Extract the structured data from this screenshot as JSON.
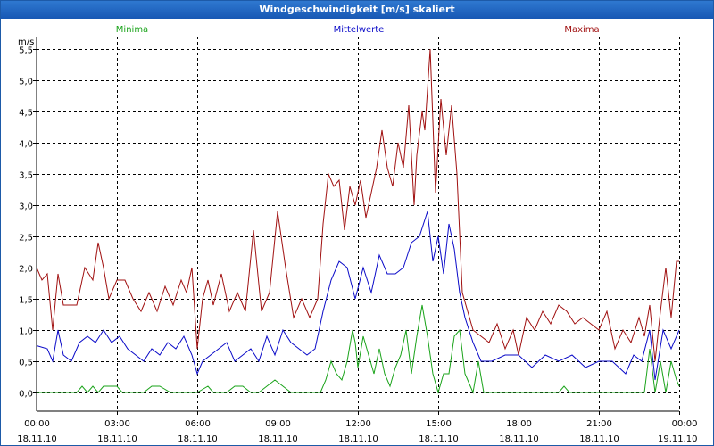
{
  "window": {
    "title": "Windgeschwindigkeit [m/s] skaliert"
  },
  "colors": {
    "minima": "#1aa31a",
    "mittel": "#0a0ac8",
    "maxima": "#a01010",
    "grid": "#000000",
    "title_bar": "#1f63bf"
  },
  "chart_data": {
    "type": "line",
    "title": "Windgeschwindigkeit [m/s] skaliert",
    "ylabel": "m/s",
    "xlabel": "",
    "xlim": [
      0,
      24
    ],
    "ylim": [
      -0.3,
      5.7
    ],
    "yticks": [
      0.0,
      0.5,
      1.0,
      1.5,
      2.0,
      2.5,
      3.0,
      3.5,
      4.0,
      4.5,
      5.0,
      5.5
    ],
    "ytick_labels": [
      "0,0",
      "0,5",
      "1,0",
      "1,5",
      "2,0",
      "2,5",
      "3,0",
      "3,5",
      "4,0",
      "4,5",
      "5,0",
      "5,5"
    ],
    "xticks": [
      0,
      3,
      6,
      9,
      12,
      15,
      18,
      21,
      24
    ],
    "xtick_time_labels": [
      "00:00",
      "03:00",
      "06:00",
      "09:00",
      "12:00",
      "15:00",
      "18:00",
      "21:00",
      "00:00"
    ],
    "xtick_date_labels": [
      "18.11.10",
      "18.11.10",
      "18.11.10",
      "18.11.10",
      "18.11.10",
      "18.11.10",
      "18.11.10",
      "18.11.10",
      "19.11.10"
    ],
    "grid": true,
    "series": [
      {
        "name": "Minima",
        "x": [
          0,
          1,
          1.5,
          1.7,
          1.9,
          2.1,
          2.3,
          2.5,
          3,
          3.2,
          4,
          4.3,
          4.6,
          5,
          6,
          6.4,
          6.6,
          6.9,
          7.1,
          7.4,
          7.7,
          8,
          8.3,
          8.6,
          8.9,
          9.2,
          9.5,
          10,
          10.3,
          10.6,
          10.8,
          11,
          11.2,
          11.4,
          11.6,
          11.8,
          11.9,
          12,
          12.2,
          12.4,
          12.6,
          12.8,
          13,
          13.2,
          13.4,
          13.6,
          13.8,
          14,
          14.2,
          14.4,
          14.6,
          14.8,
          15,
          15.2,
          15.4,
          15.6,
          15.8,
          16,
          16.3,
          16.5,
          16.7,
          17,
          18,
          19,
          19.5,
          19.7,
          19.9,
          20,
          21,
          22,
          22.5,
          22.7,
          22.9,
          23.1,
          23.3,
          23.5,
          23.7,
          23.9,
          24
        ],
        "values": [
          0,
          0,
          0,
          0.1,
          0,
          0.1,
          0,
          0.1,
          0.1,
          0,
          0,
          0.1,
          0.1,
          0,
          0,
          0.1,
          0,
          0,
          0,
          0.1,
          0.1,
          0,
          0,
          0.1,
          0.2,
          0.1,
          0,
          0,
          0,
          0,
          0.2,
          0.5,
          0.3,
          0.2,
          0.5,
          1.0,
          0.8,
          0.4,
          0.9,
          0.6,
          0.3,
          0.7,
          0.3,
          0.1,
          0.4,
          0.6,
          1.0,
          0.3,
          0.9,
          1.4,
          0.9,
          0.3,
          0,
          0.3,
          0.3,
          0.9,
          1.0,
          0.3,
          0,
          0.5,
          0,
          0,
          0,
          0,
          0,
          0.1,
          0,
          0,
          0,
          0,
          0,
          0,
          0.7,
          0,
          0.5,
          0,
          0.5,
          0.2,
          0.1
        ]
      },
      {
        "name": "Mittelwerte",
        "x": [
          0,
          0.4,
          0.6,
          0.8,
          1,
          1.3,
          1.6,
          1.9,
          2.2,
          2.5,
          2.8,
          3.1,
          3.4,
          3.7,
          4,
          4.3,
          4.6,
          4.9,
          5.2,
          5.5,
          5.8,
          6,
          6.2,
          6.5,
          6.8,
          7.1,
          7.4,
          7.7,
          8,
          8.3,
          8.6,
          8.9,
          9.2,
          9.5,
          9.8,
          10.1,
          10.4,
          10.7,
          11,
          11.3,
          11.6,
          11.9,
          12.2,
          12.5,
          12.8,
          13.1,
          13.4,
          13.7,
          14,
          14.3,
          14.6,
          14.8,
          15,
          15.2,
          15.4,
          15.6,
          15.8,
          16,
          16.3,
          16.6,
          17,
          17.5,
          18,
          18.5,
          19,
          19.5,
          20,
          20.5,
          21,
          21.5,
          22,
          22.3,
          22.6,
          22.9,
          23.1,
          23.4,
          23.7,
          24
        ],
        "values": [
          0.75,
          0.7,
          0.5,
          1.0,
          0.6,
          0.5,
          0.8,
          0.9,
          0.8,
          1.0,
          0.8,
          0.9,
          0.7,
          0.6,
          0.5,
          0.7,
          0.6,
          0.8,
          0.7,
          0.9,
          0.6,
          0.3,
          0.5,
          0.6,
          0.7,
          0.8,
          0.5,
          0.6,
          0.7,
          0.5,
          0.9,
          0.6,
          1.0,
          0.8,
          0.7,
          0.6,
          0.7,
          1.3,
          1.8,
          2.1,
          2.0,
          1.5,
          2.0,
          1.6,
          2.2,
          1.9,
          1.9,
          2.0,
          2.4,
          2.5,
          2.9,
          2.1,
          2.5,
          1.9,
          2.7,
          2.3,
          1.6,
          1.2,
          0.8,
          0.5,
          0.5,
          0.6,
          0.6,
          0.4,
          0.6,
          0.5,
          0.6,
          0.4,
          0.5,
          0.5,
          0.3,
          0.6,
          0.5,
          1.0,
          0.2,
          1.0,
          0.7,
          1.0
        ]
      },
      {
        "name": "Maxima",
        "x": [
          0,
          0.2,
          0.4,
          0.6,
          0.8,
          1,
          1.5,
          1.8,
          2.1,
          2.3,
          2.5,
          2.7,
          3,
          3.3,
          3.6,
          3.9,
          4.2,
          4.5,
          4.8,
          5.1,
          5.4,
          5.6,
          5.8,
          6,
          6.2,
          6.4,
          6.6,
          6.9,
          7.2,
          7.5,
          7.8,
          8.1,
          8.4,
          8.7,
          9,
          9.3,
          9.6,
          9.9,
          10.2,
          10.5,
          10.7,
          10.9,
          11.1,
          11.3,
          11.5,
          11.7,
          11.9,
          12.1,
          12.3,
          12.5,
          12.7,
          12.9,
          13.1,
          13.3,
          13.5,
          13.7,
          13.9,
          14.1,
          14.2,
          14.4,
          14.5,
          14.7,
          14.9,
          15.1,
          15.3,
          15.5,
          15.7,
          15.9,
          16.1,
          16.3,
          16.6,
          16.9,
          17.2,
          17.5,
          17.8,
          18,
          18.3,
          18.6,
          18.9,
          19.2,
          19.5,
          19.8,
          20.1,
          20.4,
          20.7,
          21,
          21.3,
          21.6,
          21.9,
          22.2,
          22.5,
          22.7,
          22.9,
          23.1,
          23.3,
          23.5,
          23.7,
          23.9,
          24
        ],
        "values": [
          2.0,
          1.8,
          1.9,
          1.0,
          1.9,
          1.4,
          1.4,
          2.0,
          1.8,
          2.4,
          2.0,
          1.5,
          1.8,
          1.8,
          1.5,
          1.3,
          1.6,
          1.3,
          1.7,
          1.4,
          1.8,
          1.6,
          2.0,
          0.7,
          1.5,
          1.8,
          1.4,
          1.9,
          1.3,
          1.6,
          1.3,
          2.6,
          1.3,
          1.6,
          2.9,
          2.0,
          1.2,
          1.5,
          1.2,
          1.5,
          2.7,
          3.5,
          3.3,
          3.4,
          2.6,
          3.3,
          3.0,
          3.4,
          2.8,
          3.2,
          3.6,
          4.2,
          3.6,
          3.3,
          4.0,
          3.6,
          4.6,
          3.0,
          3.8,
          4.5,
          4.2,
          5.5,
          3.2,
          4.7,
          3.8,
          4.6,
          3.5,
          1.6,
          1.3,
          1.0,
          0.9,
          0.8,
          1.1,
          0.7,
          1.0,
          0.6,
          1.2,
          1.0,
          1.3,
          1.1,
          1.4,
          1.3,
          1.1,
          1.2,
          1.1,
          1.0,
          1.3,
          0.7,
          1.0,
          0.8,
          1.2,
          0.9,
          1.4,
          0.5,
          1.3,
          2.0,
          1.2,
          2.1,
          2.1
        ]
      }
    ]
  }
}
